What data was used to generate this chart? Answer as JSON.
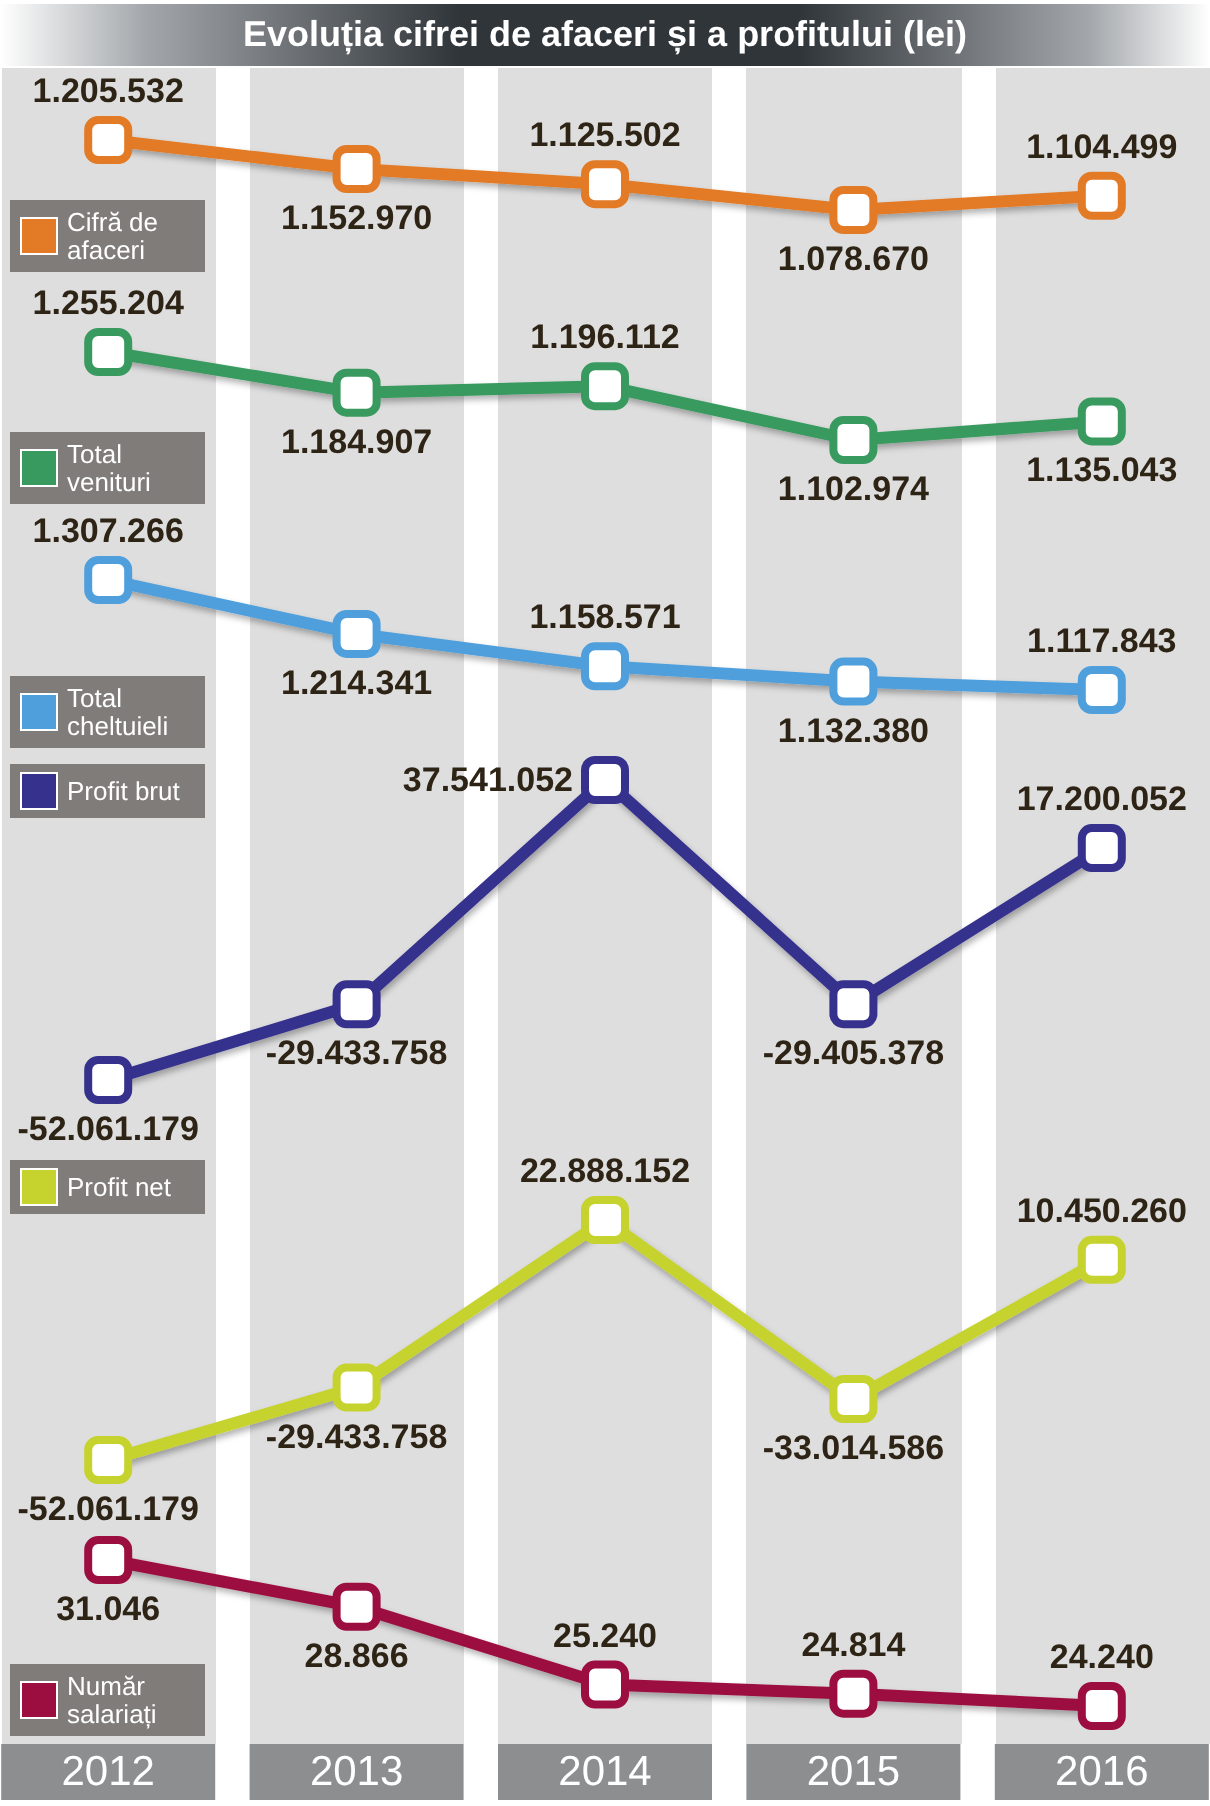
{
  "chart_data": [
    {
      "type": "line",
      "title": "Evoluția cifrei de afaceri și a profitului (lei)",
      "categories": [
        "2012",
        "2013",
        "2014",
        "2015",
        "2016"
      ],
      "series": [
        {
          "name": "Cifră de afaceri",
          "color": "#e27a26",
          "values": [
            1205532,
            1152970,
            1125502,
            1078670,
            1104499
          ],
          "value_labels": [
            "1.205.532",
            "1.152.970",
            "1.125.502",
            "1.078.670",
            "1.104.499"
          ]
        }
      ],
      "legend": "bottom left",
      "marker": "square",
      "grid": "x",
      "tick_labels": false
    },
    {
      "type": "line",
      "categories": [
        "2012",
        "2013",
        "2014",
        "2015",
        "2016"
      ],
      "series": [
        {
          "name": "Total venituri",
          "color": "#399a5f",
          "values": [
            1255204,
            1184907,
            1196112,
            1102974,
            1135043
          ],
          "value_labels": [
            "1.255.204",
            "1.184.907",
            "1.196.112",
            "1.102.974",
            "1.135.043"
          ]
        }
      ],
      "legend": "bottom left",
      "marker": "square",
      "grid": "x",
      "tick_labels": false
    },
    {
      "type": "line",
      "categories": [
        "2012",
        "2013",
        "2014",
        "2015",
        "2016"
      ],
      "series": [
        {
          "name": "Total cheltuieli",
          "color": "#4f9fdc",
          "values": [
            1307266,
            1214341,
            1158571,
            1132380,
            1117843
          ],
          "value_labels": [
            "1.307.266",
            "1.214.341",
            "1.158.571",
            "1.132.380",
            "1.117.843"
          ]
        }
      ],
      "legend": "bottom left",
      "marker": "square",
      "grid": "x",
      "tick_labels": false
    },
    {
      "type": "line",
      "categories": [
        "2012",
        "2013",
        "2014",
        "2015",
        "2016"
      ],
      "series": [
        {
          "name": "Profit brut",
          "color": "#35318d",
          "values": [
            -52061179,
            -29433758,
            37541052,
            -29405378,
            17200052
          ],
          "value_labels": [
            "-52.061.179",
            "-29.433.758",
            "37.541.052",
            "-29.405.378",
            "17.200.052"
          ]
        }
      ],
      "legend": "top left",
      "marker": "square",
      "grid": "x",
      "tick_labels": false
    },
    {
      "type": "line",
      "categories": [
        "2012",
        "2013",
        "2014",
        "2015",
        "2016"
      ],
      "series": [
        {
          "name": "Profit net",
          "color": "#c6d22d",
          "values": [
            -52061179,
            -29433758,
            22888152,
            -33014586,
            10450260
          ],
          "value_labels": [
            "-52.061.179",
            "-29.433.758",
            "22.888.152",
            "-33.014.586",
            "10.450.260"
          ]
        }
      ],
      "legend": "top left",
      "marker": "square",
      "grid": "x",
      "tick_labels": false
    },
    {
      "type": "line",
      "categories": [
        "2012",
        "2013",
        "2014",
        "2015",
        "2016"
      ],
      "series": [
        {
          "name": "Număr salariați",
          "color": "#9c0e3f",
          "values": [
            31046,
            28866,
            25240,
            24814,
            24240
          ],
          "value_labels": [
            "31.046",
            "28.866",
            "25.240",
            "24.814",
            "24.240"
          ]
        }
      ],
      "legend": "bottom left",
      "marker": "square",
      "grid": "x",
      "tick_labels": "x"
    }
  ]
}
